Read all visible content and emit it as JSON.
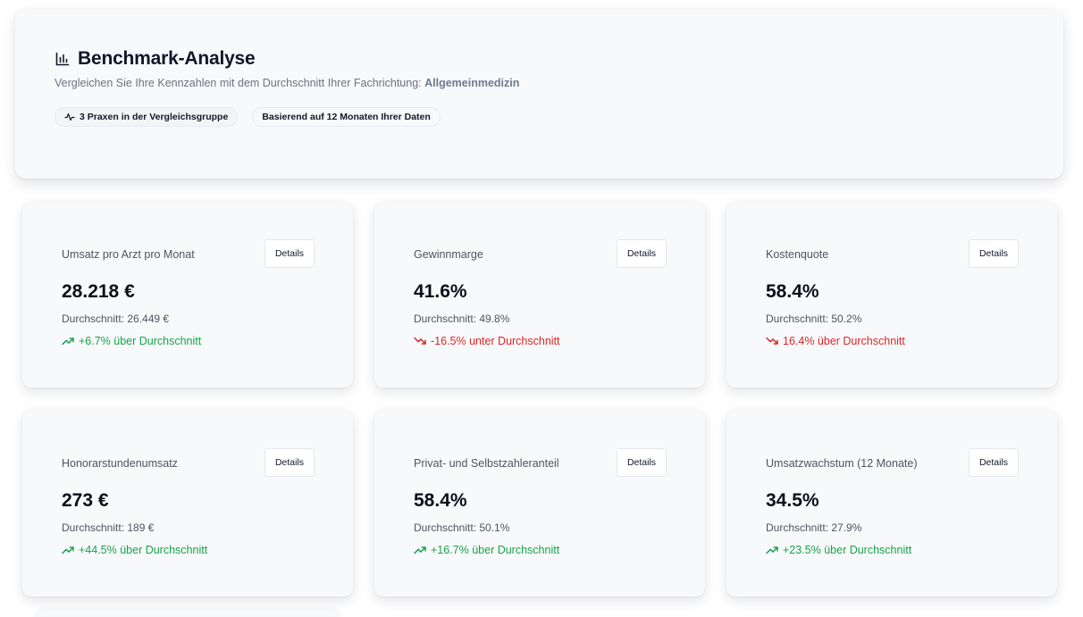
{
  "header": {
    "title": "Benchmark-Analyse",
    "subtitle_prefix": "Vergleichen Sie Ihre Kennzahlen mit dem Durchschnitt Ihrer Fachrichtung: ",
    "specialty": "Allgemeinmedizin",
    "title_icon": "bar-chart-icon",
    "badges": [
      {
        "icon": "activity-icon",
        "label": "3 Praxen in der Vergleichsgruppe"
      },
      {
        "label": "Basierend auf 12 Monaten Ihrer Daten"
      }
    ]
  },
  "details_label": "Details",
  "metrics": [
    {
      "label": "Umsatz pro Arzt pro Monat",
      "value": "28.218 €",
      "average": "Durchschnitt: 26.449 €",
      "trend": "+6.7% über Durchschnitt",
      "direction": "up"
    },
    {
      "label": "Gewinnmarge",
      "value": "41.6%",
      "average": "Durchschnitt: 49.8%",
      "trend": "-16.5% unter Durchschnitt",
      "direction": "down"
    },
    {
      "label": "Kostenquote",
      "value": "58.4%",
      "average": "Durchschnitt: 50.2%",
      "trend": "16.4% über Durchschnitt",
      "direction": "down"
    },
    {
      "label": "Honorarstundenumsatz",
      "value": "273 €",
      "average": "Durchschnitt: 189 €",
      "trend": "+44.5% über Durchschnitt",
      "direction": "up"
    },
    {
      "label": "Privat- und Selbstzahleranteil",
      "value": "58.4%",
      "average": "Durchschnitt: 50.1%",
      "trend": "+16.7% über Durchschnitt",
      "direction": "up"
    },
    {
      "label": "Umsatzwachstum (12 Monate)",
      "value": "34.5%",
      "average": "Durchschnitt: 27.9%",
      "trend": "+23.5% über Durchschnitt",
      "direction": "up"
    }
  ],
  "colors": {
    "positive": "#16a34a",
    "negative": "#dc2626",
    "text": "#0f172a",
    "muted": "#6b7280"
  }
}
